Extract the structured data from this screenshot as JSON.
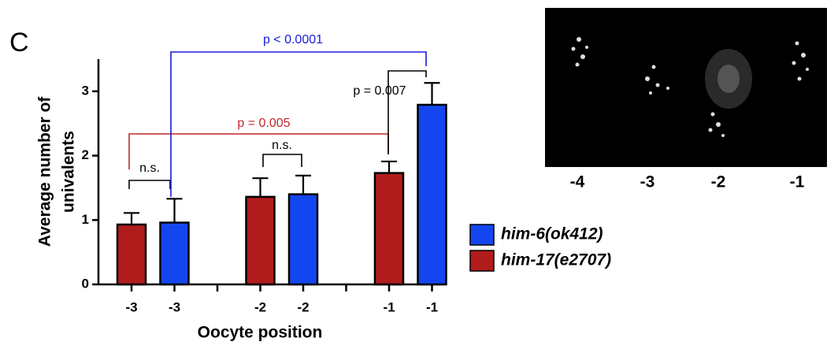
{
  "panel_label": "C",
  "chart_data": {
    "type": "bar",
    "y_label": [
      "Average number of",
      "univalents"
    ],
    "x_label": "Oocyte position",
    "categories": [
      "-3",
      "-3",
      null,
      "-2",
      "-2",
      null,
      "-1",
      "-1"
    ],
    "series": [
      {
        "name": "him-17(e2707)",
        "color": "#b01c1c",
        "values": [
          0.93,
          null,
          null,
          1.36,
          null,
          null,
          1.73,
          null
        ],
        "errors": [
          0.18,
          null,
          null,
          0.29,
          null,
          null,
          0.18,
          null
        ]
      },
      {
        "name": "him-6(ok412)",
        "color": "#1446f0",
        "values": [
          null,
          0.96,
          null,
          null,
          1.4,
          null,
          null,
          2.79
        ],
        "errors": [
          null,
          0.37,
          null,
          null,
          0.29,
          null,
          null,
          0.34
        ]
      }
    ],
    "ylim": [
      0,
      3.5
    ],
    "yticks": [
      0,
      1,
      2,
      3
    ],
    "annotations": [
      {
        "text": "n.s.",
        "color": "#000000"
      },
      {
        "text": "n.s.",
        "color": "#000000"
      },
      {
        "text": "p = 0.005",
        "color": "#c0282d"
      },
      {
        "text": "p < 0.0001",
        "color": "#1a1adc"
      },
      {
        "text": "p = 0.007",
        "color": "#000000"
      }
    ]
  },
  "image": {
    "labels": [
      "-4",
      "-3",
      "-2",
      "-1"
    ]
  }
}
